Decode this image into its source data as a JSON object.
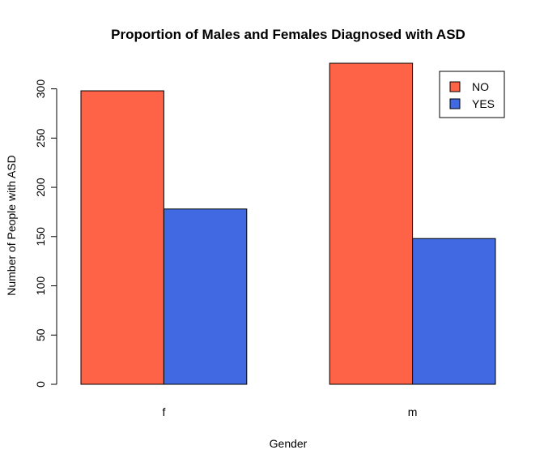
{
  "chart_data": {
    "type": "bar",
    "title": "Proportion of Males and Females Diagnosed with ASD",
    "xlabel": "Gender",
    "ylabel": "Number of People with ASD",
    "categories": [
      "f",
      "m"
    ],
    "series": [
      {
        "name": "NO",
        "color": "#FF6347",
        "values": [
          298,
          326
        ]
      },
      {
        "name": "YES",
        "color": "#4169E1",
        "values": [
          178,
          148
        ]
      }
    ],
    "ylim": [
      0,
      326
    ],
    "yticks": [
      0,
      50,
      100,
      150,
      200,
      250,
      300
    ],
    "grid": false,
    "legend_position": "top-right"
  }
}
